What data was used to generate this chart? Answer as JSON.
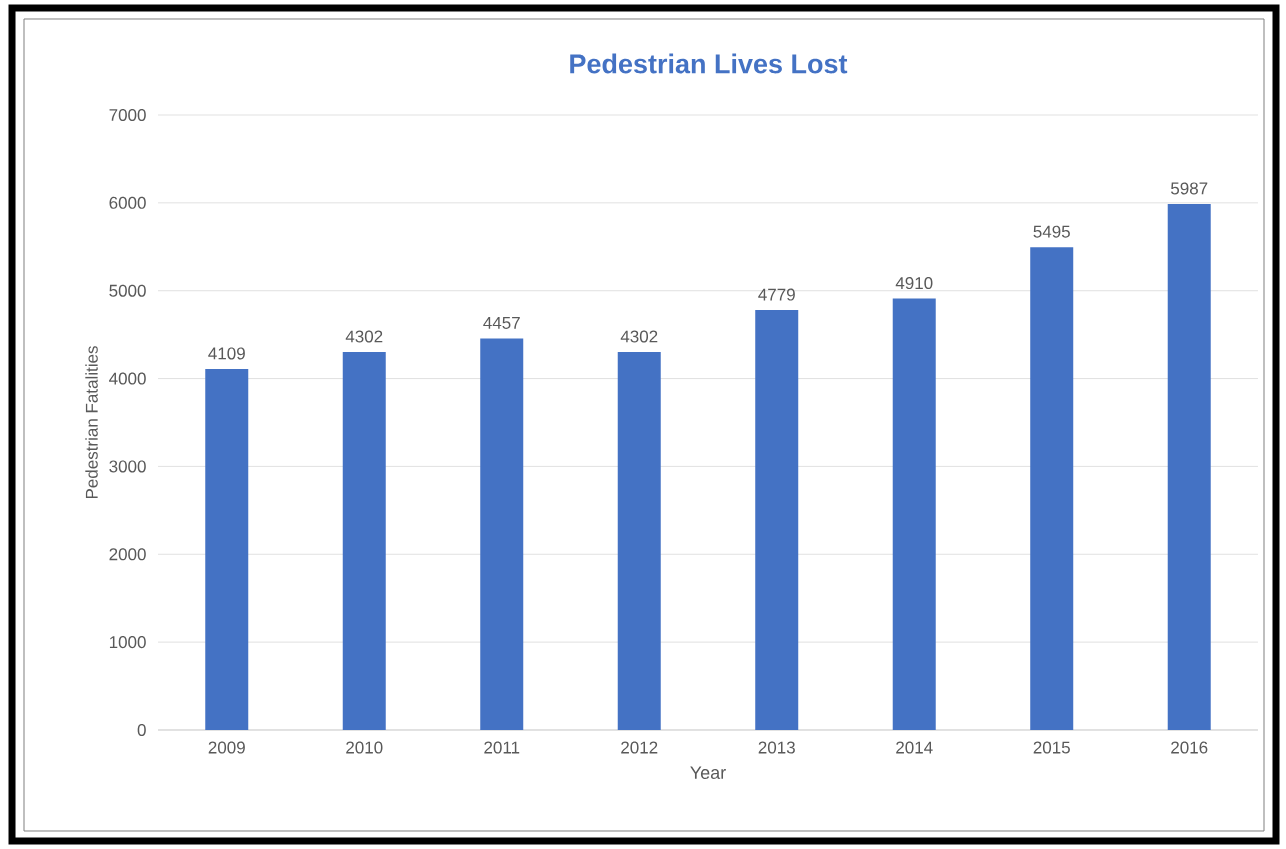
{
  "chart_data": {
    "type": "bar",
    "title": "Pedestrian Lives Lost",
    "xlabel": "Year",
    "ylabel": "Pedestrian Fatalities",
    "categories": [
      "2009",
      "2010",
      "2011",
      "2012",
      "2013",
      "2014",
      "2015",
      "2016"
    ],
    "values": [
      4109,
      4302,
      4457,
      4302,
      4779,
      4910,
      5495,
      5987
    ],
    "color": "#4472c4",
    "ylim": [
      0,
      7000
    ],
    "yticks": [
      0,
      1000,
      2000,
      3000,
      4000,
      5000,
      6000,
      7000
    ],
    "grid": "y",
    "data_labels": true
  }
}
